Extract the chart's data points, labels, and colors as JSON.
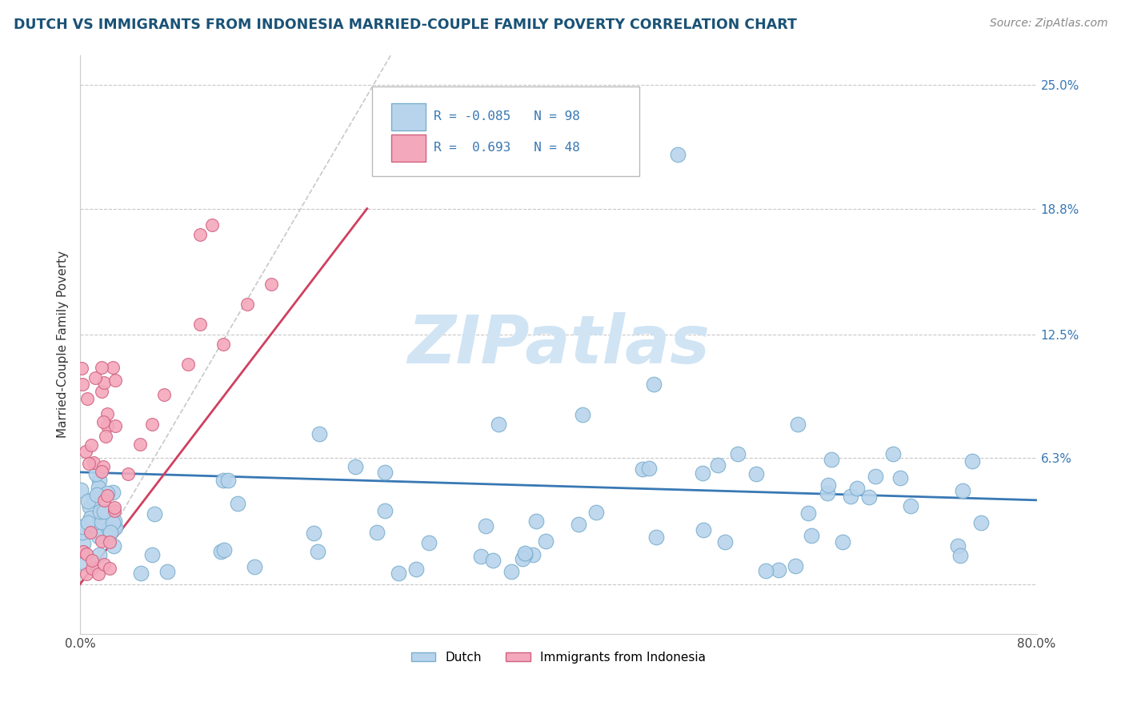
{
  "title": "DUTCH VS IMMIGRANTS FROM INDONESIA MARRIED-COUPLE FAMILY POVERTY CORRELATION CHART",
  "source": "Source: ZipAtlas.com",
  "ylabel": "Married-Couple Family Poverty",
  "yticks": [
    0.0,
    0.063,
    0.125,
    0.188,
    0.25
  ],
  "ytick_labels": [
    "",
    "6.3%",
    "12.5%",
    "18.8%",
    "25.0%"
  ],
  "xlim": [
    0.0,
    0.8
  ],
  "ylim": [
    -0.025,
    0.265
  ],
  "dutch_R": -0.085,
  "dutch_N": 98,
  "indonesia_R": 0.693,
  "indonesia_N": 48,
  "dutch_color": "#b8d4ec",
  "dutch_edge_color": "#7aaece",
  "indonesia_color": "#f4a8bc",
  "indonesia_edge_color": "#d06080",
  "dutch_line_color": "#3878b4",
  "indonesia_line_color": "#d04060",
  "ref_line_color": "#c8c8c8",
  "grid_color": "#c8c8c8",
  "title_color": "#1a5276",
  "source_color": "#888888",
  "watermark_color": "#d0e4f4",
  "dutch_line_start_x": 0.0,
  "dutch_line_start_y": 0.056,
  "dutch_line_end_x": 0.8,
  "dutch_line_end_y": 0.042,
  "indo_line_start_x": 0.0,
  "indo_line_start_y": 0.0,
  "indo_line_end_x": 0.24,
  "indo_line_end_y": 0.188,
  "ref_line_start_x": 0.0,
  "ref_line_start_y": 0.0,
  "ref_line_end_x": 0.26,
  "ref_line_end_y": 0.265
}
